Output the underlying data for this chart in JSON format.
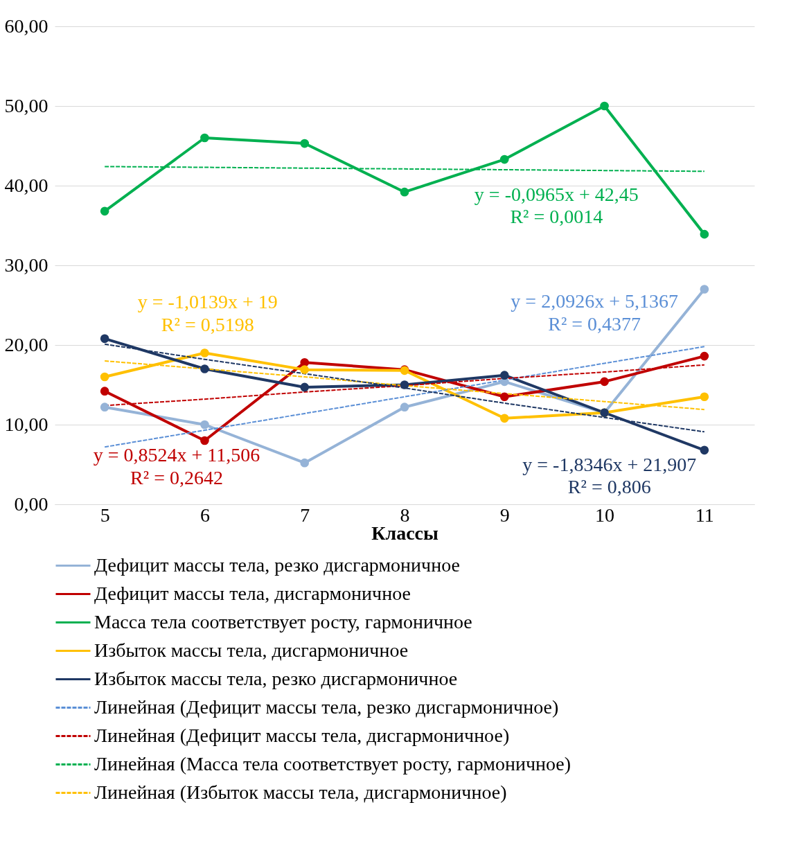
{
  "chart_data": {
    "type": "line",
    "xlabel": "Классы",
    "x": [
      5,
      6,
      7,
      8,
      9,
      10,
      11
    ],
    "xlim": [
      4.5,
      11.5
    ],
    "xticks": [
      5,
      6,
      7,
      8,
      9,
      10,
      11
    ],
    "ylim": [
      0,
      60
    ],
    "yticks": [
      {
        "value": 0,
        "label": "0,00"
      },
      {
        "value": 10,
        "label": "10,00"
      },
      {
        "value": 20,
        "label": "20,00"
      },
      {
        "value": 30,
        "label": "30,00"
      },
      {
        "value": 40,
        "label": "40,00"
      },
      {
        "value": 50,
        "label": "50,00"
      },
      {
        "value": 60,
        "label": "60,00"
      }
    ],
    "grid": "y",
    "legend": "bottom",
    "marker": "circle",
    "line_style": "solid",
    "series": [
      {
        "name": "Дефицит массы тела, резко дисгармоничное",
        "color": "#95b3d7",
        "values": [
          12.2,
          10.0,
          5.2,
          12.2,
          15.4,
          11.5,
          27.0
        ]
      },
      {
        "name": "Дефицит массы тела, дисгармоничное",
        "color": "#c00000",
        "values": [
          14.2,
          8.0,
          17.8,
          16.9,
          13.5,
          15.4,
          18.6
        ]
      },
      {
        "name": "Масса тела соответствует росту, гармоничное",
        "color": "#00b050",
        "values": [
          36.8,
          46.0,
          45.3,
          39.2,
          43.3,
          50.0,
          33.9
        ]
      },
      {
        "name": "Избыток массы тела, дисгармоничное",
        "color": "#ffc000",
        "values": [
          16.0,
          19.0,
          16.9,
          16.8,
          10.8,
          11.5,
          13.5
        ]
      },
      {
        "name": "Избыток массы тела, резко дисгармоничное",
        "color": "#1f3864",
        "values": [
          20.8,
          17.0,
          14.7,
          15.0,
          16.2,
          11.5,
          6.8
        ]
      },
      {
        "name": "Линейная (Дефицит массы тела, резко дисгармоничное)",
        "type": "line",
        "color": "#5b8fd6",
        "values": [
          7.2,
          9.3,
          11.4,
          13.5,
          15.6,
          17.7,
          19.8
        ],
        "line_style": "dashed",
        "marker": "none"
      },
      {
        "name": "Линейная (Дефицит массы тела, дисгармоничное)",
        "type": "line",
        "color": "#c00000",
        "values": [
          12.4,
          13.2,
          14.1,
          14.9,
          15.8,
          16.6,
          17.5
        ],
        "line_style": "dashed",
        "marker": "none"
      },
      {
        "name": "Линейная (Масса тела соответствует росту, гармоничное)",
        "type": "line",
        "color": "#00b050",
        "values": [
          42.4,
          42.3,
          42.2,
          42.1,
          42.0,
          41.9,
          41.8
        ],
        "line_style": "dashed",
        "marker": "none"
      },
      {
        "name": "Линейная (Избыток массы тела, дисгармоничное)",
        "type": "line",
        "color": "#ffc000",
        "values": [
          18.0,
          17.0,
          16.0,
          14.9,
          13.9,
          12.9,
          11.9
        ],
        "line_style": "dashed",
        "marker": "none"
      },
      {
        "type": "line",
        "color": "#1f3864",
        "values": [
          20.1,
          18.2,
          16.4,
          14.6,
          12.7,
          10.9,
          9.1
        ],
        "line_style": "dashed",
        "marker": "none"
      }
    ],
    "annotations": [
      "y = 2,0926x + 5,1367",
      "R² = 0,4377",
      "y = 0,8524x + 11,506",
      "R² = 0,2642",
      "y = -0,0965x + 42,45",
      "R² = 0,0014",
      "y = -1,0139x + 19",
      "R² = 0,5198",
      "y = -1,8346x + 21,907",
      "R² = 0,806"
    ]
  }
}
